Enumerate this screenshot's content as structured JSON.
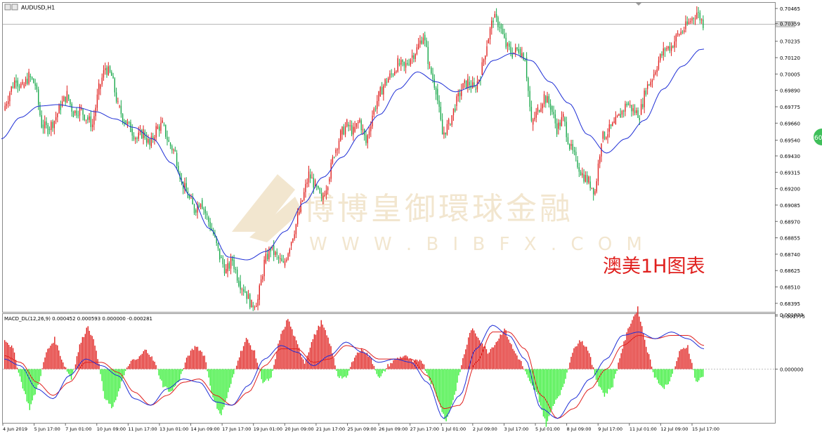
{
  "window": {
    "symbol_title": "AUDUSD,H1",
    "current_price_label": "0.70359",
    "badge_label": "60"
  },
  "annotation": {
    "text": "澳美1H图表",
    "color": "#e0201e"
  },
  "watermark": {
    "cn": "博博皇御環球金融",
    "en": "W W W . B I B F X . C O M"
  },
  "colors": {
    "bull": "#e0201e",
    "bear": "#1aa84c",
    "ma": "#1f2fd6",
    "macd_line": "#1f2fd6",
    "signal_line": "#e0201e",
    "hist_pos": "#e0201e",
    "hist_neg": "#33ee33"
  },
  "chart_data": [
    {
      "type": "candlestick",
      "title": "AUDUSD,H1",
      "ylim": [
        0.6834,
        0.705
      ],
      "y_ticks": [
        "0.70465",
        "0.70359",
        "0.70235",
        "0.70120",
        "0.70005",
        "0.69890",
        "0.69775",
        "0.69660",
        "0.69540",
        "0.69430",
        "0.69315",
        "0.69200",
        "0.69085",
        "0.68970",
        "0.68855",
        "0.68740",
        "0.68625",
        "0.68510",
        "0.68395"
      ],
      "x_ticks": [
        "4 Jun 2019",
        "5 Jun 17:00",
        "7 Jun 01:00",
        "10 Jun 09:00",
        "11 Jun 17:00",
        "13 Jun 01:00",
        "14 Jun 09:00",
        "17 Jun 17:00",
        "19 Jun 01:00",
        "20 Jun 09:00",
        "21 Jun 17:00",
        "25 Jun 09:00",
        "26 Jun 09:00",
        "27 Jun 17:00",
        "1 Jul 01:00",
        "2 Jul 09:00",
        "3 Jul 17:00",
        "5 Jul 01:00",
        "8 Jul 09:00",
        "9 Jul 17:00",
        "11 Jul 01:00",
        "12 Jul 09:00",
        "15 Jul 17:00"
      ],
      "price_path": [
        [
          0.6975,
          0.6988
        ],
        [
          0.6988,
          0.6998
        ],
        [
          0.6996,
          0.6991
        ],
        [
          0.6991,
          0.6999
        ],
        [
          0.6999,
          0.6993
        ],
        [
          0.6993,
          0.6965
        ],
        [
          0.6965,
          0.6962
        ],
        [
          0.6962,
          0.6968
        ],
        [
          0.6968,
          0.6978
        ],
        [
          0.6978,
          0.6986
        ],
        [
          0.6986,
          0.6973
        ],
        [
          0.6973,
          0.6976
        ],
        [
          0.6976,
          0.697
        ],
        [
          0.697,
          0.6965
        ],
        [
          0.6965,
          0.699
        ],
        [
          0.699,
          0.7005
        ],
        [
          0.7005,
          0.6999
        ],
        [
          0.6999,
          0.6978
        ],
        [
          0.6978,
          0.6968
        ],
        [
          0.6968,
          0.6962
        ],
        [
          0.6962,
          0.6955
        ],
        [
          0.6955,
          0.696
        ],
        [
          0.696,
          0.695
        ],
        [
          0.695,
          0.6962
        ],
        [
          0.6962,
          0.6965
        ],
        [
          0.6965,
          0.6952
        ],
        [
          0.6952,
          0.6945
        ],
        [
          0.6945,
          0.6925
        ],
        [
          0.6925,
          0.6915
        ],
        [
          0.6915,
          0.6905
        ],
        [
          0.6905,
          0.6912
        ],
        [
          0.6912,
          0.69
        ],
        [
          0.69,
          0.6888
        ],
        [
          0.6888,
          0.6872
        ],
        [
          0.6872,
          0.6862
        ],
        [
          0.6862,
          0.687
        ],
        [
          0.687,
          0.6855
        ],
        [
          0.6855,
          0.6848
        ],
        [
          0.6848,
          0.6838
        ],
        [
          0.6838,
          0.6842
        ],
        [
          0.6842,
          0.6868
        ],
        [
          0.6868,
          0.6878
        ],
        [
          0.6878,
          0.6872
        ],
        [
          0.6872,
          0.6866
        ],
        [
          0.6866,
          0.688
        ],
        [
          0.688,
          0.6895
        ],
        [
          0.6895,
          0.6912
        ],
        [
          0.6912,
          0.693
        ],
        [
          0.693,
          0.6922
        ],
        [
          0.6922,
          0.6912
        ],
        [
          0.6912,
          0.6925
        ],
        [
          0.6925,
          0.6945
        ],
        [
          0.6945,
          0.6958
        ],
        [
          0.6958,
          0.6965
        ],
        [
          0.6965,
          0.696
        ],
        [
          0.696,
          0.6968
        ],
        [
          0.6968,
          0.6952
        ],
        [
          0.6952,
          0.6972
        ],
        [
          0.6972,
          0.6985
        ],
        [
          0.6985,
          0.6995
        ],
        [
          0.6995,
          0.7
        ],
        [
          0.7,
          0.7008
        ],
        [
          0.7008,
          0.7005
        ],
        [
          0.7005,
          0.7012
        ],
        [
          0.7012,
          0.7018
        ],
        [
          0.7018,
          0.7028
        ],
        [
          0.7028,
          0.7005
        ],
        [
          0.7005,
          0.699
        ],
        [
          0.699,
          0.6958
        ],
        [
          0.6958,
          0.6965
        ],
        [
          0.6965,
          0.6978
        ],
        [
          0.6978,
          0.699
        ],
        [
          0.699,
          0.6995
        ],
        [
          0.6995,
          0.699
        ],
        [
          0.699,
          0.7
        ],
        [
          0.7,
          0.7022
        ],
        [
          0.7022,
          0.704
        ],
        [
          0.704,
          0.7035
        ],
        [
          0.7035,
          0.702
        ],
        [
          0.702,
          0.7015
        ],
        [
          0.7015,
          0.7018
        ],
        [
          0.7018,
          0.7012
        ],
        [
          0.7012,
          0.6965
        ],
        [
          0.6965,
          0.6975
        ],
        [
          0.6975,
          0.6985
        ],
        [
          0.6985,
          0.6978
        ],
        [
          0.6978,
          0.6962
        ],
        [
          0.6962,
          0.697
        ],
        [
          0.697,
          0.695
        ],
        [
          0.695,
          0.694
        ],
        [
          0.694,
          0.693
        ],
        [
          0.693,
          0.6925
        ],
        [
          0.6925,
          0.6918
        ],
        [
          0.6918,
          0.6955
        ],
        [
          0.6955,
          0.696
        ],
        [
          0.696,
          0.6965
        ],
        [
          0.6965,
          0.6972
        ],
        [
          0.6972,
          0.698
        ],
        [
          0.698,
          0.6975
        ],
        [
          0.6975,
          0.6972
        ],
        [
          0.6972,
          0.699
        ],
        [
          0.699,
          0.6998
        ],
        [
          0.6998,
          0.701
        ],
        [
          0.701,
          0.7018
        ],
        [
          0.7018,
          0.702
        ],
        [
          0.702,
          0.7028
        ],
        [
          0.7028,
          0.7032
        ],
        [
          0.7032,
          0.7038
        ],
        [
          0.7038,
          0.7044
        ],
        [
          0.7044,
          0.7036
        ]
      ],
      "moving_average_path": [
        0.6955,
        0.697,
        0.6978,
        0.6979,
        0.6977,
        0.6974,
        0.6969,
        0.6963,
        0.6955,
        0.6938,
        0.6915,
        0.6892,
        0.6872,
        0.687,
        0.6876,
        0.689,
        0.691,
        0.6928,
        0.6942,
        0.6958,
        0.6972,
        0.699,
        0.7002,
        0.6995,
        0.6988,
        0.6992,
        0.701,
        0.7015,
        0.701,
        0.6995,
        0.698,
        0.6958,
        0.6945,
        0.6955,
        0.6968,
        0.699,
        0.7006,
        0.7018
      ]
    },
    {
      "type": "macd",
      "title": "MACD_DL(12,26,9) 0.000452 0.000593 0.000000 -0.000281",
      "ylim": [
        -0.001775,
        0.001833
      ],
      "y_ticks": [
        "0.001833",
        "0.000000",
        "-0.001775"
      ],
      "histogram": [
        0.9,
        0.6,
        -0.4,
        -1.2,
        -0.5,
        0.5,
        0.9,
        0.2,
        -0.3,
        0.7,
        1.3,
        0.6,
        -0.9,
        -1.2,
        -0.4,
        0.2,
        0.3,
        0.6,
        0.2,
        -0.5,
        -0.7,
        -0.3,
        0.4,
        0.7,
        0.4,
        -0.9,
        -1.4,
        -0.6,
        0.3,
        0.9,
        0.5,
        -0.4,
        -0.3,
        0.9,
        1.5,
        0.8,
        0.2,
        0.9,
        1.4,
        0.8,
        -0.2,
        -0.3,
        0.4,
        0.6,
        0.3,
        -0.3,
        0.1,
        0.3,
        0.4,
        0.2,
        0.3,
        -0.3,
        -0.9,
        -1.6,
        -0.8,
        0.3,
        1.2,
        0.9,
        0.5,
        0.8,
        1.2,
        0.6,
        0.2,
        -0.4,
        -0.8,
        -1.7,
        -1.0,
        -0.6,
        0.4,
        0.9,
        0.6,
        -0.3,
        -0.8,
        -0.5,
        0.5,
        1.3,
        1.8,
        0.7,
        -0.2,
        -0.6,
        -0.3,
        0.5,
        0.7,
        -0.4,
        -0.2
      ],
      "macd": [
        0.3,
        0.1,
        -0.6,
        -0.9,
        -0.2,
        0.3,
        0.1,
        -0.2,
        -0.9,
        -1.1,
        -0.6,
        -0.3,
        -0.4,
        -1.0,
        -1.1,
        -0.5,
        0.3,
        0.7,
        0.5,
        0.1,
        0.4,
        0.8,
        0.5,
        0.2,
        0.3,
        0.2,
        -0.4,
        -1.5,
        -0.8,
        0.6,
        1.3,
        1.0,
        0.3,
        -1.2,
        -1.5,
        -0.9,
        -0.3,
        0.3,
        1.0,
        1.1,
        0.9,
        1.1,
        0.9,
        0.6
      ],
      "signal": [
        0.4,
        0.2,
        -0.4,
        -0.8,
        -0.4,
        0.2,
        0.2,
        -0.1,
        -0.7,
        -1.1,
        -0.8,
        -0.4,
        -0.3,
        -0.8,
        -1.1,
        -0.7,
        0.1,
        0.6,
        0.6,
        0.2,
        0.3,
        0.7,
        0.6,
        0.3,
        0.3,
        0.3,
        -0.2,
        -1.2,
        -1.1,
        0.2,
        1.1,
        1.1,
        0.6,
        -0.8,
        -1.5,
        -1.2,
        -0.6,
        0.0,
        0.7,
        1.0,
        0.9,
        1.0,
        1.0,
        0.7
      ]
    }
  ]
}
